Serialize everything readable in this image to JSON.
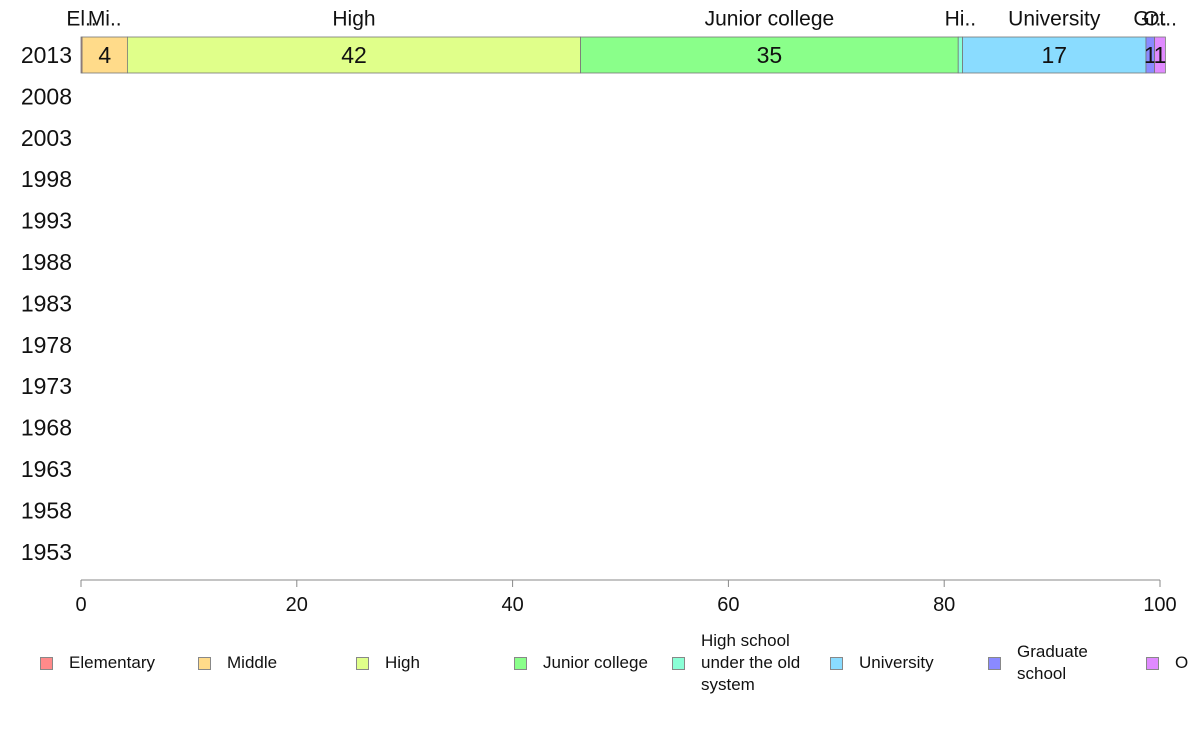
{
  "chart_data": {
    "type": "bar",
    "orientation": "horizontal",
    "stacked": true,
    "categories": [
      "2013",
      "2008",
      "2003",
      "1998",
      "1993",
      "1988",
      "1983",
      "1978",
      "1973",
      "1968",
      "1963",
      "1958",
      "1953"
    ],
    "series": [
      {
        "name": "Elementary",
        "values": [
          0.1,
          null,
          null,
          null,
          null,
          null,
          null,
          null,
          null,
          null,
          null,
          null,
          null
        ],
        "color": "#ff8a8a"
      },
      {
        "name": "Middle",
        "values": [
          4.2,
          null,
          null,
          null,
          null,
          null,
          null,
          null,
          null,
          null,
          null,
          null,
          null
        ],
        "color": "#ffdb8a"
      },
      {
        "name": "High",
        "values": [
          42,
          null,
          null,
          null,
          null,
          null,
          null,
          null,
          null,
          null,
          null,
          null,
          null
        ],
        "color": "#e0ff8a"
      },
      {
        "name": "Junior college",
        "values": [
          35,
          null,
          null,
          null,
          null,
          null,
          null,
          null,
          null,
          null,
          null,
          null,
          null
        ],
        "color": "#8aff8a"
      },
      {
        "name": "High school under the old system",
        "values": [
          0.4,
          null,
          null,
          null,
          null,
          null,
          null,
          null,
          null,
          null,
          null,
          null,
          null
        ],
        "color": "#8affd6"
      },
      {
        "name": "University",
        "values": [
          17,
          null,
          null,
          null,
          null,
          null,
          null,
          null,
          null,
          null,
          null,
          null,
          null
        ],
        "color": "#8adcff"
      },
      {
        "name": "Graduate school",
        "values": [
          0.8,
          null,
          null,
          null,
          null,
          null,
          null,
          null,
          null,
          null,
          null,
          null,
          null
        ],
        "color": "#8a8aff"
      },
      {
        "name": "Other",
        "values": [
          1,
          null,
          null,
          null,
          null,
          null,
          null,
          null,
          null,
          null,
          null,
          null,
          null
        ],
        "color": "#e08aff"
      }
    ],
    "top_labels": [
      "El..",
      "Mi..",
      "High",
      "Junior college",
      "Hi..",
      "University",
      "Gr..",
      "Ot.."
    ],
    "data_labels": [
      "",
      "4",
      "42",
      "35",
      "",
      "17",
      "1",
      "1"
    ],
    "x_ticks": [
      "0",
      "20",
      "40",
      "60",
      "80",
      "100"
    ],
    "xlim": [
      0,
      100
    ],
    "grid": false,
    "legend_position": "bottom"
  },
  "legend": [
    {
      "label": "Elementary",
      "color": "#ff8a8a"
    },
    {
      "label": "Middle",
      "color": "#ffdb8a"
    },
    {
      "label": "High",
      "color": "#e0ff8a"
    },
    {
      "label": "Junior college",
      "color": "#8aff8a"
    },
    {
      "label": "High school under the old system",
      "color": "#8affd6"
    },
    {
      "label": "University",
      "color": "#8adcff"
    },
    {
      "label": "Graduate school",
      "color": "#8a8aff"
    },
    {
      "label": "Other",
      "color": "#e08aff"
    }
  ]
}
